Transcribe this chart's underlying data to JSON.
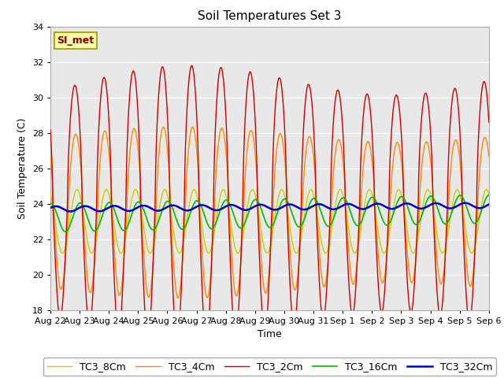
{
  "title": "Soil Temperatures Set 3",
  "xlabel": "Time",
  "ylabel": "Soil Temperature (C)",
  "ylim": [
    18,
    34
  ],
  "xlim": [
    0,
    15
  ],
  "tick_labels": [
    "Aug 22",
    "Aug 23",
    "Aug 24",
    "Aug 25",
    "Aug 26",
    "Aug 27",
    "Aug 28",
    "Aug 29",
    "Aug 30",
    "Aug 31",
    "Sep 1",
    "Sep 2",
    "Sep 3",
    "Sep 4",
    "Sep 5",
    "Sep 6"
  ],
  "series_labels": [
    "TC3_2Cm",
    "TC3_4Cm",
    "TC3_8Cm",
    "TC3_16Cm",
    "TC3_32Cm"
  ],
  "series_colors": [
    "#cc0000",
    "#ff8800",
    "#cccc00",
    "#00bb00",
    "#0000cc"
  ],
  "line_widths": [
    1.0,
    1.0,
    1.0,
    1.2,
    1.8
  ],
  "annotation_text": "SI_met",
  "annotation_color": "#880000",
  "annotation_bg": "#ffffaa",
  "annotation_border": "#999900",
  "plot_bg_color": "#e8e8e8",
  "fig_bg_color": "#ffffff",
  "grid_color": "#ffffff",
  "title_fontsize": 11,
  "axis_fontsize": 9,
  "tick_fontsize": 8,
  "legend_fontsize": 9
}
